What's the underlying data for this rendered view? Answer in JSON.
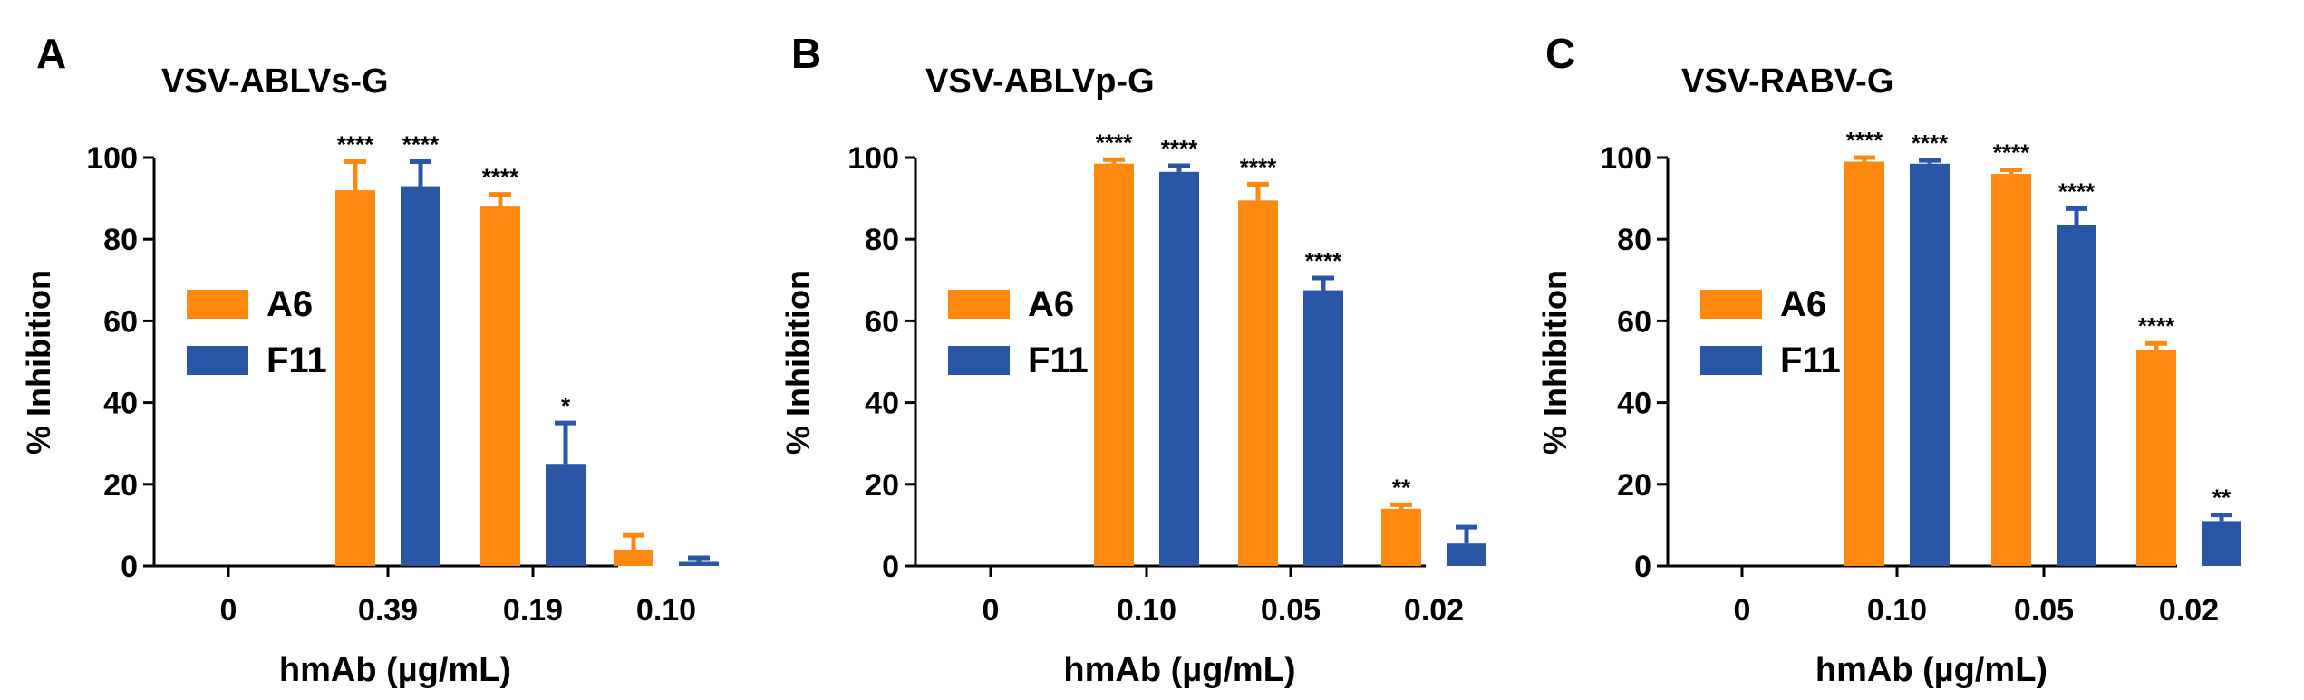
{
  "colors": {
    "A6": "#FF8811",
    "F11": "#2A56A6",
    "axis": "#000000"
  },
  "chart_data": [
    {
      "type": "bar",
      "panel_label": "A",
      "title": "VSV-ABLVs-G",
      "xlabel": "hmAb (µg/mL)",
      "ylabel": "% Inhibition",
      "ylim": [
        0,
        100
      ],
      "yticks": [
        "0",
        "20",
        "40",
        "60",
        "80",
        "100"
      ],
      "categories": [
        "0",
        "0.39",
        "0.19",
        "0.10"
      ],
      "legend": [
        "A6",
        "F11"
      ],
      "legend_position": "middle-left",
      "series": [
        {
          "name": "A6",
          "values": [
            0,
            92,
            88,
            4
          ],
          "errors": [
            0,
            7,
            3,
            3.5
          ],
          "significance": [
            "",
            "****",
            "****",
            ""
          ]
        },
        {
          "name": "F11",
          "values": [
            0,
            93,
            25,
            1
          ],
          "errors": [
            0,
            6,
            10,
            1
          ],
          "significance": [
            "",
            "****",
            "*",
            ""
          ]
        }
      ]
    },
    {
      "type": "bar",
      "panel_label": "B",
      "title": "VSV-ABLVp-G",
      "xlabel": "hmAb (µg/mL)",
      "ylabel": "% Inhibition",
      "ylim": [
        0,
        100
      ],
      "yticks": [
        "0",
        "20",
        "40",
        "60",
        "80",
        "100"
      ],
      "categories": [
        "0",
        "0.10",
        "0.05",
        "0.02"
      ],
      "legend": [
        "A6",
        "F11"
      ],
      "legend_position": "middle-left",
      "series": [
        {
          "name": "A6",
          "values": [
            0,
            98.5,
            89.5,
            14
          ],
          "errors": [
            0,
            1,
            4,
            1
          ],
          "significance": [
            "",
            "****",
            "****",
            "**"
          ]
        },
        {
          "name": "F11",
          "values": [
            0,
            96.5,
            67.5,
            5.5
          ],
          "errors": [
            0,
            1.5,
            3,
            4
          ],
          "significance": [
            "",
            "****",
            "****",
            ""
          ]
        }
      ]
    },
    {
      "type": "bar",
      "panel_label": "C",
      "title": "VSV-RABV-G",
      "xlabel": "hmAb (µg/mL)",
      "ylabel": "% Inhibition",
      "ylim": [
        0,
        100
      ],
      "yticks": [
        "0",
        "20",
        "40",
        "60",
        "80",
        "100"
      ],
      "categories": [
        "0",
        "0.10",
        "0.05",
        "0.02"
      ],
      "legend": [
        "A6",
        "F11"
      ],
      "legend_position": "middle-left",
      "series": [
        {
          "name": "A6",
          "values": [
            0,
            99,
            96,
            53
          ],
          "errors": [
            0,
            1,
            1,
            1.5
          ],
          "significance": [
            "",
            "****",
            "****",
            "****"
          ]
        },
        {
          "name": "F11",
          "values": [
            0,
            98.5,
            83.5,
            11
          ],
          "errors": [
            0,
            0.8,
            4,
            1.5
          ],
          "significance": [
            "",
            "****",
            "****",
            "**"
          ]
        }
      ]
    }
  ]
}
